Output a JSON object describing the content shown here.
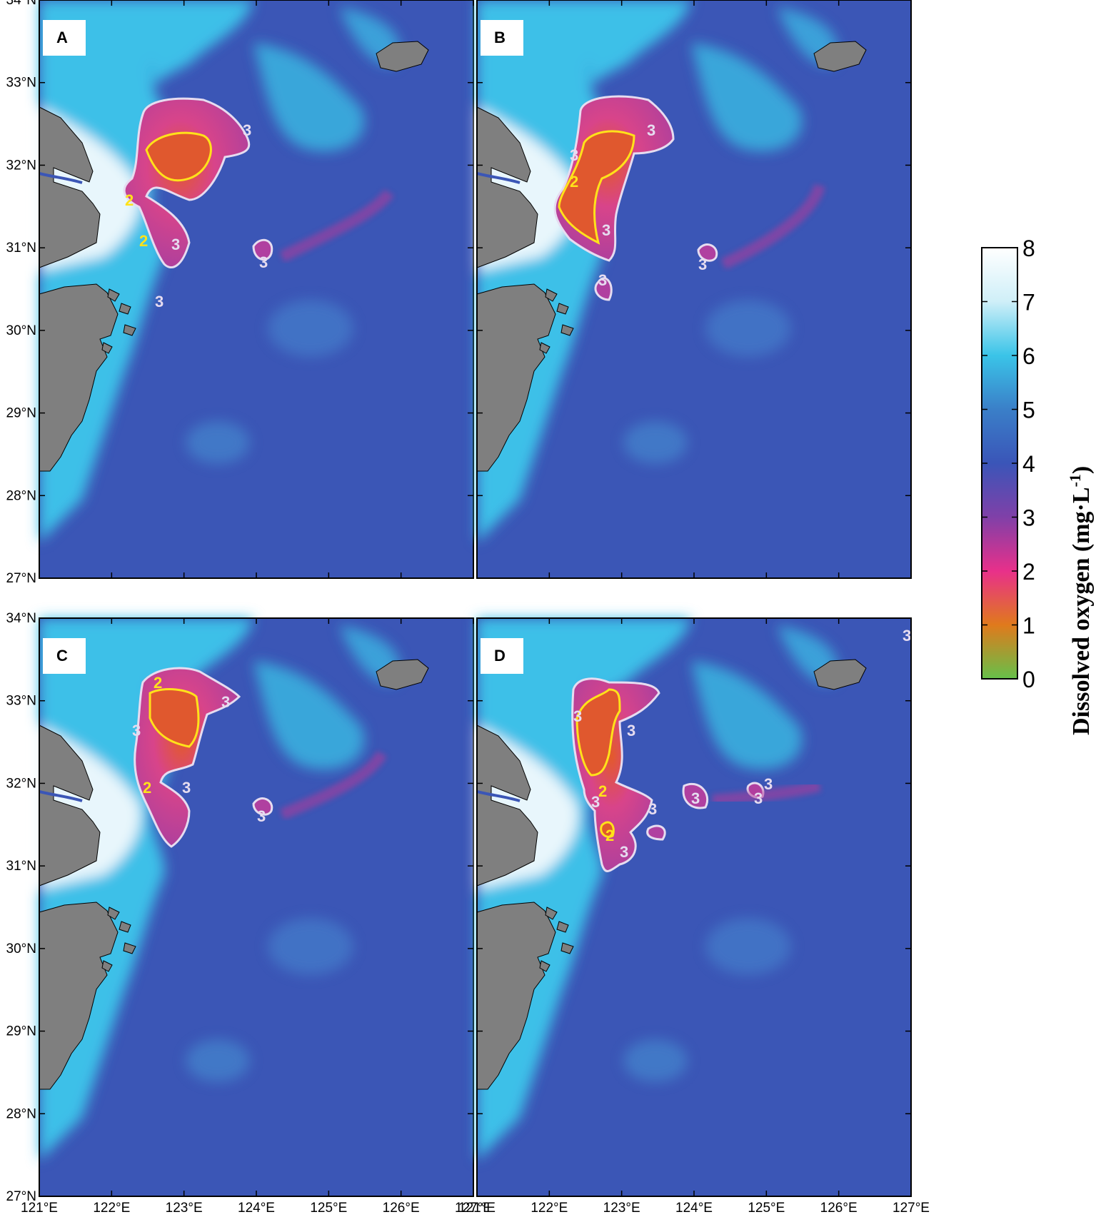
{
  "panels": [
    {
      "letter": "A"
    },
    {
      "letter": "B"
    },
    {
      "letter": "C"
    },
    {
      "letter": "D"
    }
  ],
  "axes": {
    "lon_ticks": [
      "121°E",
      "122°E",
      "123°E",
      "124°E",
      "125°E",
      "126°E",
      "127°E"
    ],
    "lat_ticks": [
      "27°N",
      "28°N",
      "29°N",
      "30°N",
      "31°N",
      "32°N",
      "33°N",
      "34°N"
    ],
    "lon_range": [
      121,
      127
    ],
    "lat_range": [
      27,
      34
    ]
  },
  "colorbar": {
    "title_main": "Dissolved oxygen (mg·L",
    "title_sup": "-1",
    "title_end": ")",
    "ticks": [
      "0",
      "1",
      "2",
      "3",
      "4",
      "5",
      "6",
      "7",
      "8"
    ],
    "range": [
      0,
      8
    ],
    "colors": [
      "#66c04a",
      "#e07a1c",
      "#e8308a",
      "#8040a8",
      "#3a55b8",
      "#3a7fc8",
      "#3ac4e8",
      "#cfeff8",
      "#ffffff"
    ]
  },
  "contour_labels": {
    "two": "2",
    "three": "3"
  },
  "colors": {
    "ocean": "#3b56b6",
    "land": "#7f7f7f",
    "coastal": "#38bfe6",
    "hypoxia": "#c23a96",
    "core": "#e0582e",
    "contour2": "#ffe21a",
    "contour3": "#e6dcf0"
  }
}
